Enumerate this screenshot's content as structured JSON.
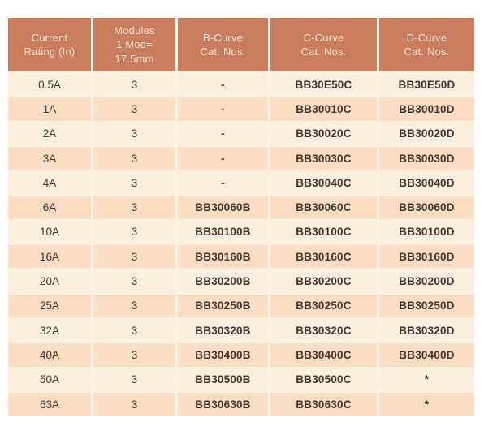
{
  "colors": {
    "header_bg": "#C97D5C",
    "header_text": "#F7E4D3",
    "row_light": "#FBF0DE",
    "row_dark": "#FADDC3",
    "gap": "#FCF3E5",
    "cell_text": "#44352C",
    "page_bg": "#FFFFFF"
  },
  "table": {
    "headers": [
      "Current\nRating (In)",
      "Modules\n1 Mod=\n17.5mm",
      "B-Curve\nCat. Nos.",
      "C-Curve\nCat. Nos.",
      "D-Curve\nCat. Nos."
    ],
    "rows": [
      [
        "0.5A",
        "3",
        "-",
        "BB30E50C",
        "BB30E50D"
      ],
      [
        "1A",
        "3",
        "-",
        "BB30010C",
        "BB30010D"
      ],
      [
        "2A",
        "3",
        "-",
        "BB30020C",
        "BB30020D"
      ],
      [
        "3A",
        "3",
        "-",
        "BB30030C",
        "BB30030D"
      ],
      [
        "4A",
        "3",
        "-",
        "BB30040C",
        "BB30040D"
      ],
      [
        "6A",
        "3",
        "BB30060B",
        "BB30060C",
        "BB30060D"
      ],
      [
        "10A",
        "3",
        "BB30100B",
        "BB30100C",
        "BB30100D"
      ],
      [
        "16A",
        "3",
        "BB30160B",
        "BB30160C",
        "BB30160D"
      ],
      [
        "20A",
        "3",
        "BB30200B",
        "BB30200C",
        "BB30200D"
      ],
      [
        "25A",
        "3",
        "BB30250B",
        "BB30250C",
        "BB30250D"
      ],
      [
        "32A",
        "3",
        "BB30320B",
        "BB30320C",
        "BB30320D"
      ],
      [
        "40A",
        "3",
        "BB30400B",
        "BB30400C",
        "BB30400D"
      ],
      [
        "50A",
        "3",
        "BB30500B",
        "BB30500C",
        "*"
      ],
      [
        "63A",
        "3",
        "BB30630B",
        "BB30630C",
        "*"
      ]
    ]
  }
}
